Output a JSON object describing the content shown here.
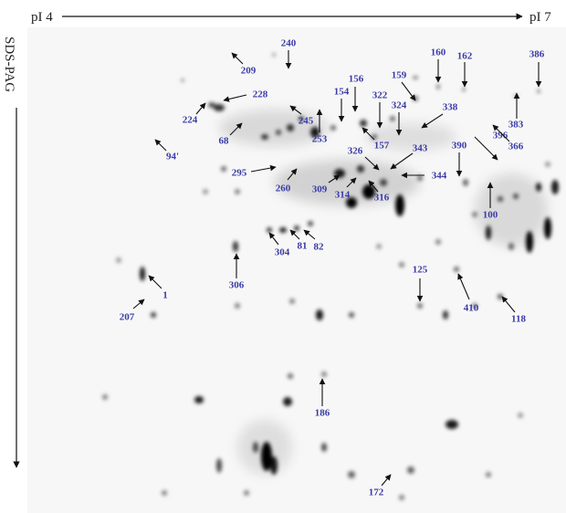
{
  "axes": {
    "left_top": "pI 4",
    "right_top": "pI 7",
    "vertical": "SDS-PAG"
  },
  "labels": [
    "240",
    "209",
    "160",
    "162",
    "386",
    "159",
    "156",
    "154",
    "322",
    "324",
    "338",
    "228",
    "224",
    "245",
    "253",
    "383",
    "68",
    "396",
    "366",
    "157",
    "390",
    "343",
    "94'",
    "326",
    "295",
    "344",
    "260",
    "309",
    "316",
    "314",
    "100",
    "304",
    "81",
    "82",
    "125",
    "306",
    "1",
    "410",
    "207",
    "118",
    "186",
    "172"
  ]
}
